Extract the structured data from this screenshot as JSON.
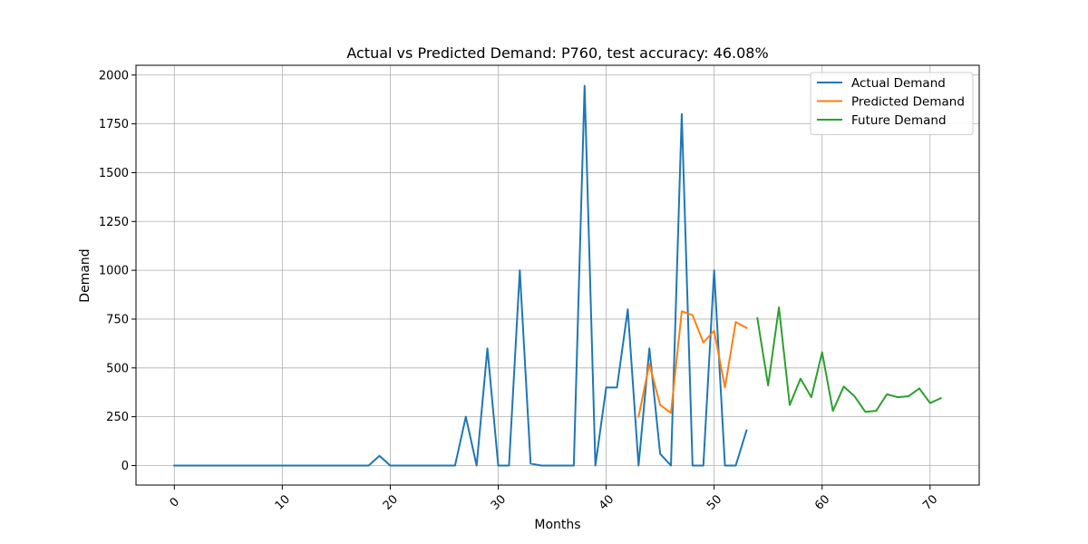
{
  "chart_data": {
    "type": "line",
    "title": "Actual vs Predicted Demand: P760, test accuracy: 46.08%",
    "xlabel": "Months",
    "ylabel": "Demand",
    "xlim": [
      -3.55,
      74.55
    ],
    "ylim": [
      -100,
      2050
    ],
    "xticks": [
      0,
      10,
      20,
      30,
      40,
      50,
      60,
      70
    ],
    "yticks": [
      0,
      250,
      500,
      750,
      1000,
      1250,
      1500,
      1750,
      2000
    ],
    "grid": true,
    "legend_position": "top-right",
    "series": [
      {
        "name": "Actual Demand",
        "color": "#1f77b4",
        "x": [
          0,
          1,
          2,
          3,
          4,
          5,
          6,
          7,
          8,
          9,
          10,
          11,
          12,
          13,
          14,
          15,
          16,
          17,
          18,
          19,
          20,
          21,
          22,
          23,
          24,
          25,
          26,
          27,
          28,
          29,
          30,
          31,
          32,
          33,
          34,
          35,
          36,
          37,
          38,
          39,
          40,
          41,
          42,
          43,
          44,
          45,
          46,
          47,
          48,
          49,
          50,
          51,
          52,
          53
        ],
        "y": [
          0,
          0,
          0,
          0,
          0,
          0,
          0,
          0,
          0,
          0,
          0,
          0,
          0,
          0,
          0,
          0,
          0,
          0,
          0,
          50,
          0,
          0,
          0,
          0,
          0,
          0,
          0,
          250,
          0,
          600,
          0,
          0,
          1000,
          10,
          0,
          0,
          0,
          0,
          1945,
          0,
          400,
          400,
          800,
          0,
          600,
          60,
          0,
          1800,
          0,
          0,
          1000,
          0,
          0,
          180
        ]
      },
      {
        "name": "Predicted Demand",
        "color": "#ff7f0e",
        "x": [
          43,
          44,
          45,
          46,
          47,
          48,
          49,
          50,
          51,
          52,
          53
        ],
        "y": [
          250,
          520,
          310,
          270,
          790,
          770,
          630,
          690,
          400,
          735,
          705
        ]
      },
      {
        "name": "Future Demand",
        "color": "#2ca02c",
        "x": [
          54,
          55,
          56,
          57,
          58,
          59,
          60,
          61,
          62,
          63,
          64,
          65,
          66,
          67,
          68,
          69,
          70,
          71
        ],
        "y": [
          755,
          410,
          810,
          310,
          445,
          350,
          580,
          280,
          405,
          355,
          275,
          280,
          365,
          350,
          355,
          395,
          320,
          345
        ]
      }
    ]
  }
}
